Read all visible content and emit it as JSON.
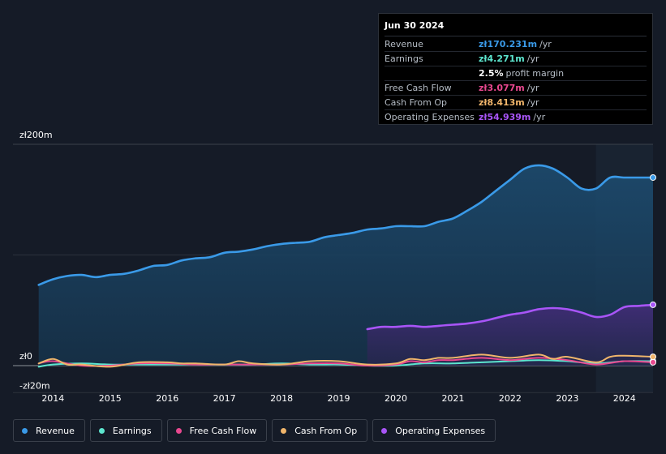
{
  "tooltip": {
    "date": "Jun 30 2024",
    "rows": [
      {
        "label": "Revenue",
        "value": "zł170.231m",
        "unit": "/yr",
        "color": "#3a9ae8"
      },
      {
        "label": "Earnings",
        "value": "zł4.271m",
        "unit": "/yr",
        "color": "#5de6cf"
      },
      {
        "label": "",
        "value": "2.5%",
        "unit": "profit margin",
        "color": "#ffffff"
      },
      {
        "label": "Free Cash Flow",
        "value": "zł3.077m",
        "unit": "/yr",
        "color": "#e8488f"
      },
      {
        "label": "Cash From Op",
        "value": "zł8.413m",
        "unit": "/yr",
        "color": "#f0b56b"
      },
      {
        "label": "Operating Expenses",
        "value": "zł54.939m",
        "unit": "/yr",
        "color": "#a855f7"
      }
    ]
  },
  "chart_data": {
    "type": "area",
    "title": "",
    "xlabel": "",
    "ylabel": "",
    "y_top_label": "zł200m",
    "y_zero_label": "zł0",
    "y_bottom_label": "-zł20m",
    "ylim": [
      -20,
      200
    ],
    "xlim": [
      2013.3,
      2024.5
    ],
    "x_ticks": [
      "2014",
      "2015",
      "2016",
      "2017",
      "2018",
      "2019",
      "2020",
      "2021",
      "2022",
      "2023",
      "2024"
    ],
    "x_tick_values": [
      2014,
      2015,
      2016,
      2017,
      2018,
      2019,
      2020,
      2021,
      2022,
      2023,
      2024
    ],
    "highlight_range": [
      2023.5,
      2024.5
    ],
    "series": [
      {
        "name": "Revenue",
        "color": "#3a9ae8",
        "x": [
          2013.75,
          2014.0,
          2014.25,
          2014.5,
          2014.75,
          2015.0,
          2015.25,
          2015.5,
          2015.75,
          2016.0,
          2016.25,
          2016.5,
          2016.75,
          2017.0,
          2017.25,
          2017.5,
          2017.75,
          2018.0,
          2018.25,
          2018.5,
          2018.75,
          2019.0,
          2019.25,
          2019.5,
          2019.75,
          2020.0,
          2020.25,
          2020.5,
          2020.75,
          2021.0,
          2021.25,
          2021.5,
          2021.75,
          2022.0,
          2022.25,
          2022.5,
          2022.75,
          2023.0,
          2023.25,
          2023.5,
          2023.75,
          2024.0,
          2024.25,
          2024.5
        ],
        "values": [
          73,
          78,
          81,
          82,
          80,
          82,
          83,
          86,
          90,
          91,
          95,
          97,
          98,
          102,
          103,
          105,
          108,
          110,
          111,
          112,
          116,
          118,
          120,
          123,
          124,
          126,
          126,
          126,
          130,
          133,
          140,
          148,
          158,
          168,
          178,
          181,
          178,
          170,
          160,
          160,
          170,
          170,
          170,
          170
        ]
      },
      {
        "name": "Earnings",
        "color": "#5de6cf",
        "x": [
          2013.75,
          2014.0,
          2014.5,
          2015.0,
          2015.5,
          2016.0,
          2016.5,
          2017.0,
          2017.5,
          2018.0,
          2018.5,
          2019.0,
          2019.5,
          2020.0,
          2020.5,
          2021.0,
          2021.5,
          2022.0,
          2022.5,
          2023.0,
          2023.5,
          2024.0,
          2024.5
        ],
        "values": [
          -1,
          1,
          2,
          1,
          1,
          1,
          1,
          1,
          1,
          2,
          1,
          1,
          0,
          0,
          2,
          2,
          3,
          4,
          5,
          4,
          2,
          4,
          4
        ]
      },
      {
        "name": "Free Cash Flow",
        "color": "#e8488f",
        "x": [
          2013.75,
          2014.0,
          2014.5,
          2015.0,
          2015.5,
          2016.0,
          2016.5,
          2017.0,
          2017.5,
          2018.0,
          2018.5,
          2019.0,
          2019.5,
          2020.0,
          2020.25,
          2020.5,
          2020.75,
          2021.0,
          2021.5,
          2022.0,
          2022.5,
          2023.0,
          2023.5,
          2024.0,
          2024.5
        ],
        "values": [
          2,
          4,
          0,
          0,
          2,
          2,
          1,
          1,
          1,
          1,
          2,
          2,
          0,
          1,
          4,
          3,
          5,
          5,
          7,
          5,
          7,
          5,
          1,
          4,
          3
        ]
      },
      {
        "name": "Cash From Op",
        "color": "#f0b56b",
        "x": [
          2013.75,
          2014.0,
          2014.25,
          2014.5,
          2015.0,
          2015.5,
          2016.0,
          2016.25,
          2016.5,
          2017.0,
          2017.25,
          2017.5,
          2018.0,
          2018.5,
          2019.0,
          2019.5,
          2020.0,
          2020.25,
          2020.5,
          2020.75,
          2021.0,
          2021.5,
          2022.0,
          2022.5,
          2022.75,
          2023.0,
          2023.5,
          2023.75,
          2024.0,
          2024.5
        ],
        "values": [
          2,
          6,
          1,
          1,
          -1,
          3,
          3,
          2,
          2,
          1,
          4,
          2,
          1,
          4,
          4,
          1,
          2,
          6,
          5,
          7,
          7,
          10,
          7,
          10,
          6,
          8,
          3,
          8,
          9,
          8
        ]
      },
      {
        "name": "Operating Expenses",
        "color": "#a855f7",
        "x": [
          2019.5,
          2019.75,
          2020.0,
          2020.25,
          2020.5,
          2020.75,
          2021.0,
          2021.25,
          2021.5,
          2021.75,
          2022.0,
          2022.25,
          2022.5,
          2022.75,
          2023.0,
          2023.25,
          2023.5,
          2023.75,
          2024.0,
          2024.25,
          2024.5
        ],
        "values": [
          33,
          35,
          35,
          36,
          35,
          36,
          37,
          38,
          40,
          43,
          46,
          48,
          51,
          52,
          51,
          48,
          44,
          46,
          53,
          54,
          55
        ]
      }
    ]
  },
  "legend": [
    {
      "label": "Revenue",
      "color": "#3a9ae8"
    },
    {
      "label": "Earnings",
      "color": "#5de6cf"
    },
    {
      "label": "Free Cash Flow",
      "color": "#e8488f"
    },
    {
      "label": "Cash From Op",
      "color": "#f0b56b"
    },
    {
      "label": "Operating Expenses",
      "color": "#a855f7"
    }
  ]
}
